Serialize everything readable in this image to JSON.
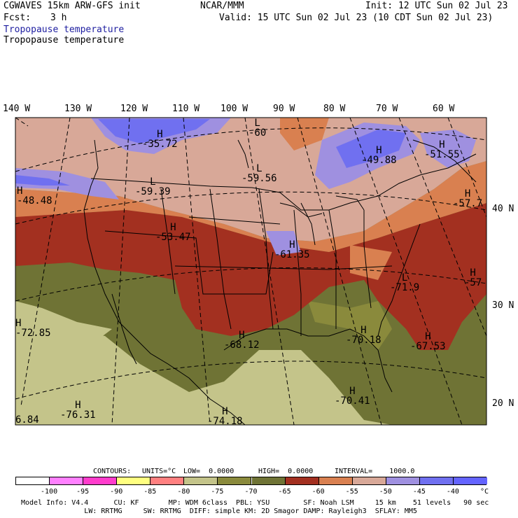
{
  "header": {
    "model": "CGWAVES 15km ARW-GFS init",
    "org": "NCAR/MMM",
    "init": "Init: 12 UTC Sun 02 Jul 23",
    "fcst_label": "Fcst:",
    "fcst_value": "3 h",
    "valid": "Valid: 15 UTC Sun 02 Jul 23 (10 CDT Sun 02 Jul 23)",
    "field_shaded": "Tropopause temperature",
    "field_contour": "Tropopause temperature"
  },
  "longitude_labels": [
    "140 W",
    "130 W",
    "120 W",
    "110 W",
    "100 W",
    "90 W",
    "80 W",
    "70 W",
    "60 W"
  ],
  "latitude_labels": [
    "40 N",
    "30 N",
    "20 N"
  ],
  "highs_lows": [
    {
      "symbol": "H",
      "value": "-35.72"
    },
    {
      "symbol": "L",
      "value": "-60"
    },
    {
      "symbol": "H",
      "value": "-49.88"
    },
    {
      "symbol": "H",
      "value": "-51.55"
    },
    {
      "symbol": "H",
      "value": "-48.48"
    },
    {
      "symbol": "L",
      "value": "-59.39"
    },
    {
      "symbol": "L",
      "value": "-59.56"
    },
    {
      "symbol": "H",
      "value": "-57.7"
    },
    {
      "symbol": "H",
      "value": "-53.47"
    },
    {
      "symbol": "H",
      "value": "-61.35"
    },
    {
      "symbol": "H",
      "value": "-57"
    },
    {
      "symbol": "L",
      "value": "-71.9"
    },
    {
      "symbol": "H",
      "value": "-72.85"
    },
    {
      "symbol": "H",
      "value": "-68.12"
    },
    {
      "symbol": "H",
      "value": "-70.18"
    },
    {
      "symbol": "H",
      "value": "-67.53"
    },
    {
      "symbol": "H",
      "value": "-70.41"
    },
    {
      "symbol": "H",
      "value": "-76.31"
    },
    {
      "symbol": "H",
      "value": "-74.18"
    },
    {
      "symbol": "",
      "value": "6.84"
    }
  ],
  "contour_info": {
    "contours": "CONTOURS:",
    "units": "UNITS=°C",
    "low": "LOW=  0.0000",
    "high": "HIGH=  0.0000",
    "interval": "INTERVAL=    1000.0"
  },
  "colorbar": {
    "colors": [
      "#ffffff",
      "#ff80ff",
      "#ff3ccc",
      "#ffff80",
      "#ff8080",
      "#c4c48a",
      "#8a8a3c",
      "#6f7335",
      "#a33020",
      "#d98050",
      "#d8a898",
      "#9f90e0",
      "#7070f0",
      "#6464ff"
    ],
    "labels": [
      "-100",
      "-95",
      "-90",
      "-85",
      "-80",
      "-75",
      "-70",
      "-65",
      "-60",
      "-55",
      "-50",
      "-45",
      "-40",
      "°C"
    ]
  },
  "footer": {
    "line1": "Model Info: V4.4      CU: KF       MP: WDM 6class  PBL: YSU        SF: Noah LSM     15 km    51 levels   90 sec",
    "line2": "               LW: RRTMG     SW: RRTMG  DIFF: simple KM: 2D Smagor DAMP: Rayleigh3  SFLAY: MM5"
  }
}
